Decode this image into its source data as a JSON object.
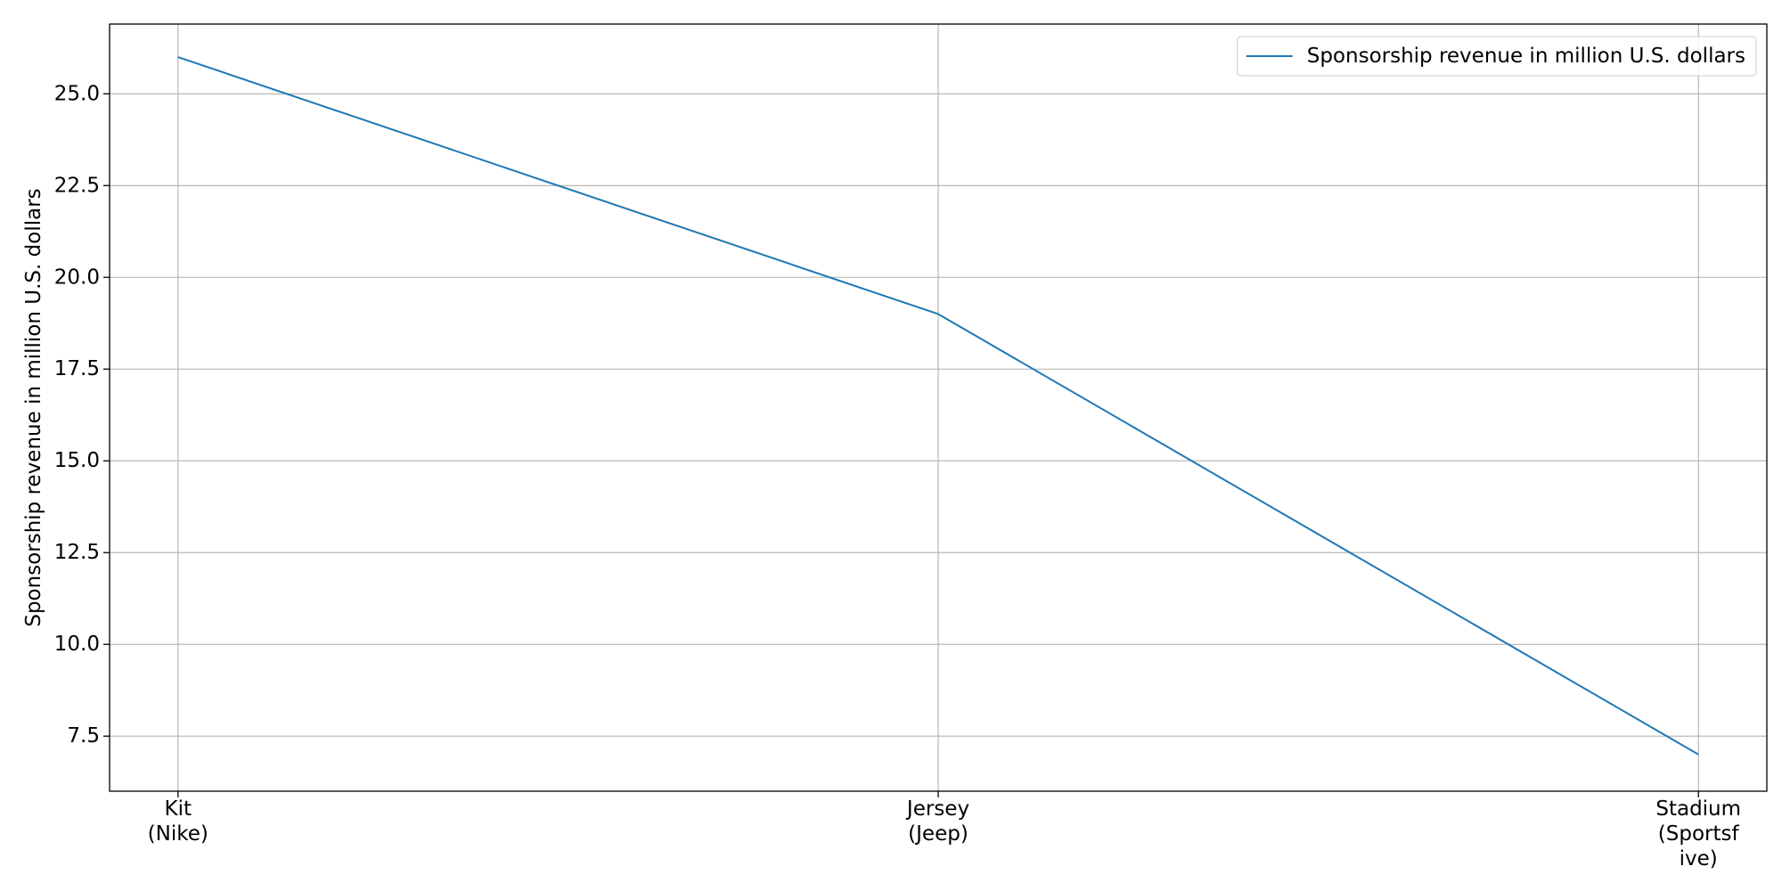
{
  "chart_data": {
    "type": "line",
    "title": "",
    "xlabel": "",
    "ylabel": "Sponsorship revenue in million U.S. dollars",
    "categories": [
      [
        "Kit",
        "(Nike)"
      ],
      [
        "Jersey",
        "(Jeep)"
      ],
      [
        "Stadium",
        "(Sportsf",
        "ive)"
      ]
    ],
    "series": [
      {
        "name": "Sponsorship revenue in million U.S. dollars",
        "values": [
          26,
          19,
          7
        ],
        "color": "#1f77b4"
      }
    ],
    "ylim": [
      6.0,
      26.9
    ],
    "yticks": [
      7.5,
      10.0,
      12.5,
      15.0,
      17.5,
      20.0,
      22.5,
      25.0
    ],
    "ytick_labels": [
      "7.5",
      "10.0",
      "12.5",
      "15.0",
      "17.5",
      "20.0",
      "22.5",
      "25.0"
    ],
    "grid": true,
    "legend_position": "top-right"
  }
}
